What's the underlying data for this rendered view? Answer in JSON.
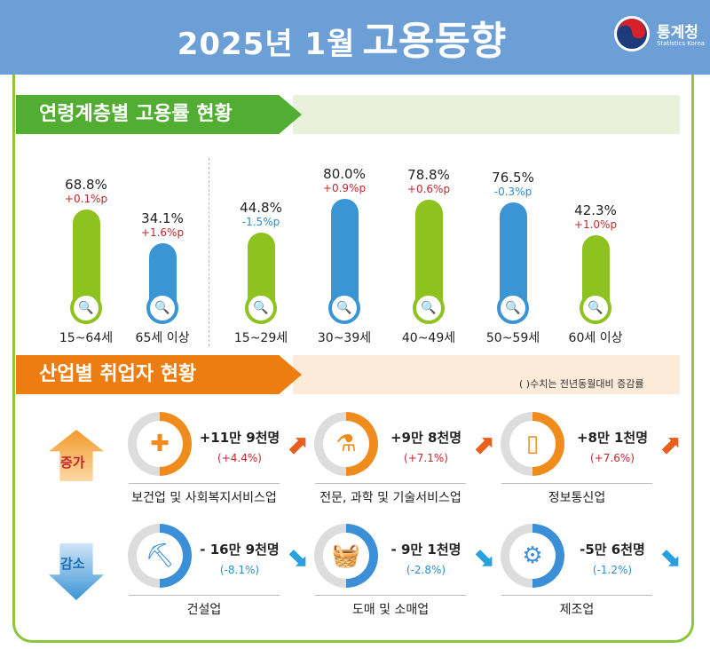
{
  "header": {
    "title_prefix": "2025년 1월",
    "title_main": "고용동향",
    "logo_name": "통계청",
    "logo_sub": "Statistics Korea"
  },
  "section1": {
    "title": "연령계층별 고용률 현황"
  },
  "chart_data": {
    "type": "bar",
    "categories": [
      "15~64세",
      "65세 이상",
      "15~29세",
      "30~39세",
      "40~49세",
      "50~59세",
      "60세 이상"
    ],
    "values": [
      68.8,
      34.1,
      44.8,
      80.0,
      78.8,
      76.5,
      42.3
    ],
    "value_labels": [
      "68.8%",
      "34.1%",
      "44.8%",
      "80.0%",
      "78.8%",
      "76.5%",
      "42.3%"
    ],
    "changes": [
      "+0.1%p",
      "+1.6%p",
      "-1.5%p",
      "+0.9%p",
      "+0.6%p",
      "-0.3%p",
      "+1.0%p"
    ],
    "bar_colors": [
      "#8dc21f",
      "#3a95d4",
      "#8dc21f",
      "#3a95d4",
      "#8dc21f",
      "#3a95d4",
      "#8dc21f"
    ],
    "unit": "%"
  },
  "section2": {
    "title": "산업별 취업자 현황",
    "note": "( )수치는 전년동월대비 증감률"
  },
  "increase": {
    "label": "증가",
    "items": [
      {
        "value": "+11만 9천명",
        "pct": "(+4.4%)",
        "name": "보건업 및 사회복지서비스업",
        "icon": "medical-kit-icon"
      },
      {
        "value": "+9만 8천명",
        "pct": "(+7.1%)",
        "name": "전문, 과학 및 기술서비스업",
        "icon": "flask-icon"
      },
      {
        "value": "+8만 1천명",
        "pct": "(+7.6%)",
        "name": "정보통신업",
        "icon": "phone-icon"
      }
    ]
  },
  "decrease": {
    "label": "감소",
    "items": [
      {
        "value": "- 16만 9천명",
        "pct": "(-8.1%)",
        "name": "건설업",
        "icon": "excavator-icon"
      },
      {
        "value": "- 9만 1천명",
        "pct": "(-2.8%)",
        "name": "도매 및 소매업",
        "icon": "basket-icon"
      },
      {
        "value": "-5만 6천명",
        "pct": "(-1.2%)",
        "name": "제조업",
        "icon": "gear-icon"
      }
    ]
  },
  "colors": {
    "header": "#6c9fd6",
    "green": "#8dc21f",
    "blue": "#3a95d4",
    "orange": "#f08c1e",
    "up_text": "#c0282d",
    "down_text": "#2d8ccf"
  }
}
